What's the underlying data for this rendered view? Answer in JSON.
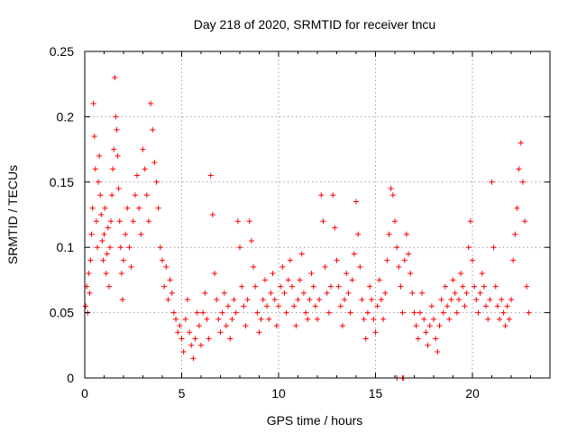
{
  "chart_data": {
    "type": "scatter",
    "title": "Day 218 of 2020, SRMTID for receiver tncu",
    "xlabel": "GPS time / hours",
    "ylabel": "SRMTID / TECUs",
    "xlim": [
      0,
      24
    ],
    "ylim": [
      0,
      0.25
    ],
    "xticks": [
      "0",
      "5",
      "10",
      "15",
      "20"
    ],
    "xtick_values": [
      0,
      5,
      10,
      15,
      20
    ],
    "yticks": [
      "0",
      "0.05",
      "0.1",
      "0.15",
      "0.2",
      "0.25"
    ],
    "ytick_values": [
      0,
      0.05,
      0.1,
      0.15,
      0.2,
      0.25
    ],
    "grid": true,
    "marker": "plus",
    "color": "#ff0000",
    "series": [
      {
        "values": [
          [
            0.05,
            0.055
          ],
          [
            0.1,
            0.07
          ],
          [
            0.15,
            0.05
          ],
          [
            0.2,
            0.08
          ],
          [
            0.25,
            0.065
          ],
          [
            0.3,
            0.09
          ],
          [
            0.35,
            0.11
          ],
          [
            0.4,
            0.13
          ],
          [
            0.45,
            0.21
          ],
          [
            0.5,
            0.185
          ],
          [
            0.55,
            0.16
          ],
          [
            0.6,
            0.12
          ],
          [
            0.65,
            0.1
          ],
          [
            0.7,
            0.15
          ],
          [
            0.75,
            0.17
          ],
          [
            0.8,
            0.14
          ],
          [
            0.85,
            0.125
          ],
          [
            0.9,
            0.105
          ],
          [
            0.95,
            0.09
          ],
          [
            1.0,
            0.11
          ],
          [
            1.05,
            0.13
          ],
          [
            1.1,
            0.08
          ],
          [
            1.15,
            0.095
          ],
          [
            1.2,
            0.115
          ],
          [
            1.25,
            0.07
          ],
          [
            1.3,
            0.1
          ],
          [
            1.35,
            0.12
          ],
          [
            1.4,
            0.14
          ],
          [
            1.45,
            0.16
          ],
          [
            1.5,
            0.175
          ],
          [
            1.55,
            0.23
          ],
          [
            1.6,
            0.2
          ],
          [
            1.65,
            0.19
          ],
          [
            1.7,
            0.17
          ],
          [
            1.75,
            0.145
          ],
          [
            1.8,
            0.12
          ],
          [
            1.85,
            0.1
          ],
          [
            1.9,
            0.08
          ],
          [
            1.95,
            0.06
          ],
          [
            2.0,
            0.09
          ],
          [
            2.1,
            0.11
          ],
          [
            2.2,
            0.13
          ],
          [
            2.3,
            0.1
          ],
          [
            2.4,
            0.085
          ],
          [
            2.5,
            0.12
          ],
          [
            2.6,
            0.14
          ],
          [
            2.7,
            0.155
          ],
          [
            2.8,
            0.13
          ],
          [
            2.9,
            0.11
          ],
          [
            3.0,
            0.175
          ],
          [
            3.1,
            0.16
          ],
          [
            3.2,
            0.14
          ],
          [
            3.3,
            0.12
          ],
          [
            3.4,
            0.21
          ],
          [
            3.5,
            0.19
          ],
          [
            3.6,
            0.165
          ],
          [
            3.7,
            0.15
          ],
          [
            3.8,
            0.13
          ],
          [
            3.9,
            0.1
          ],
          [
            4.0,
            0.09
          ],
          [
            4.1,
            0.07
          ],
          [
            4.2,
            0.085
          ],
          [
            4.3,
            0.06
          ],
          [
            4.4,
            0.075
          ],
          [
            4.5,
            0.065
          ],
          [
            4.6,
            0.05
          ],
          [
            4.7,
            0.045
          ],
          [
            4.8,
            0.035
          ],
          [
            4.9,
            0.04
          ],
          [
            5.0,
            0.03
          ],
          [
            5.1,
            0.02
          ],
          [
            5.2,
            0.045
          ],
          [
            5.3,
            0.06
          ],
          [
            5.4,
            0.035
          ],
          [
            5.5,
            0.025
          ],
          [
            5.6,
            0.015
          ],
          [
            5.7,
            0.03
          ],
          [
            5.8,
            0.05
          ],
          [
            5.9,
            0.04
          ],
          [
            6.0,
            0.025
          ],
          [
            6.1,
            0.05
          ],
          [
            6.2,
            0.065
          ],
          [
            6.3,
            0.045
          ],
          [
            6.4,
            0.03
          ],
          [
            6.5,
            0.155
          ],
          [
            6.6,
            0.125
          ],
          [
            6.7,
            0.08
          ],
          [
            6.8,
            0.06
          ],
          [
            6.9,
            0.045
          ],
          [
            7.0,
            0.035
          ],
          [
            7.1,
            0.05
          ],
          [
            7.2,
            0.065
          ],
          [
            7.3,
            0.04
          ],
          [
            7.4,
            0.055
          ],
          [
            7.5,
            0.03
          ],
          [
            7.6,
            0.045
          ],
          [
            7.7,
            0.06
          ],
          [
            7.8,
            0.05
          ],
          [
            7.9,
            0.12
          ],
          [
            8.0,
            0.1
          ],
          [
            8.1,
            0.07
          ],
          [
            8.2,
            0.055
          ],
          [
            8.3,
            0.04
          ],
          [
            8.4,
            0.06
          ],
          [
            8.5,
            0.12
          ],
          [
            8.6,
            0.105
          ],
          [
            8.7,
            0.085
          ],
          [
            8.8,
            0.07
          ],
          [
            8.9,
            0.05
          ],
          [
            9.0,
            0.035
          ],
          [
            9.1,
            0.045
          ],
          [
            9.2,
            0.06
          ],
          [
            9.3,
            0.075
          ],
          [
            9.4,
            0.055
          ],
          [
            9.5,
            0.045
          ],
          [
            9.6,
            0.065
          ],
          [
            9.7,
            0.08
          ],
          [
            9.8,
            0.06
          ],
          [
            9.9,
            0.04
          ],
          [
            10.0,
            0.055
          ],
          [
            10.1,
            0.07
          ],
          [
            10.2,
            0.085
          ],
          [
            10.3,
            0.065
          ],
          [
            10.4,
            0.05
          ],
          [
            10.5,
            0.075
          ],
          [
            10.6,
            0.09
          ],
          [
            10.7,
            0.07
          ],
          [
            10.8,
            0.055
          ],
          [
            10.9,
            0.04
          ],
          [
            11.0,
            0.06
          ],
          [
            11.1,
            0.075
          ],
          [
            11.2,
            0.095
          ],
          [
            11.3,
            0.065
          ],
          [
            11.4,
            0.05
          ],
          [
            11.5,
            0.045
          ],
          [
            11.6,
            0.06
          ],
          [
            11.7,
            0.08
          ],
          [
            11.8,
            0.07
          ],
          [
            11.9,
            0.055
          ],
          [
            12.0,
            0.045
          ],
          [
            12.1,
            0.06
          ],
          [
            12.2,
            0.14
          ],
          [
            12.3,
            0.12
          ],
          [
            12.4,
            0.085
          ],
          [
            12.5,
            0.065
          ],
          [
            12.6,
            0.05
          ],
          [
            12.7,
            0.07
          ],
          [
            12.8,
            0.14
          ],
          [
            12.9,
            0.115
          ],
          [
            13.0,
            0.09
          ],
          [
            13.1,
            0.07
          ],
          [
            13.2,
            0.055
          ],
          [
            13.3,
            0.04
          ],
          [
            13.4,
            0.06
          ],
          [
            13.5,
            0.08
          ],
          [
            13.6,
            0.065
          ],
          [
            13.7,
            0.05
          ],
          [
            13.8,
            0.075
          ],
          [
            13.9,
            0.095
          ],
          [
            14.0,
            0.135
          ],
          [
            14.1,
            0.11
          ],
          [
            14.2,
            0.085
          ],
          [
            14.3,
            0.06
          ],
          [
            14.4,
            0.045
          ],
          [
            14.5,
            0.03
          ],
          [
            14.6,
            0.05
          ],
          [
            14.7,
            0.07
          ],
          [
            14.8,
            0.06
          ],
          [
            14.9,
            0.045
          ],
          [
            15.0,
            0.035
          ],
          [
            15.1,
            0.055
          ],
          [
            15.2,
            0.075
          ],
          [
            15.3,
            0.06
          ],
          [
            15.4,
            0.045
          ],
          [
            15.5,
            0.065
          ],
          [
            15.6,
            0.09
          ],
          [
            15.7,
            0.11
          ],
          [
            15.8,
            0.145
          ],
          [
            15.9,
            0.14
          ],
          [
            16.0,
            0.12
          ],
          [
            16.1,
            0.1
          ],
          [
            16.2,
            0.085
          ],
          [
            16.3,
            0.07
          ],
          [
            16.4,
            0.05
          ],
          [
            16.5,
            0.09
          ],
          [
            16.6,
            0.11
          ],
          [
            16.7,
            0.095
          ],
          [
            16.8,
            0.08
          ],
          [
            16.9,
            0.065
          ],
          [
            17.0,
            0.05
          ],
          [
            17.1,
            0.04
          ],
          [
            17.2,
            0.03
          ],
          [
            17.3,
            0.05
          ],
          [
            17.4,
            0.065
          ],
          [
            17.5,
            0.045
          ],
          [
            17.6,
            0.035
          ],
          [
            17.7,
            0.025
          ],
          [
            17.8,
            0.04
          ],
          [
            17.9,
            0.055
          ],
          [
            18.0,
            0.045
          ],
          [
            18.1,
            0.03
          ],
          [
            18.2,
            0.02
          ],
          [
            18.3,
            0.04
          ],
          [
            18.4,
            0.06
          ],
          [
            18.5,
            0.05
          ],
          [
            18.6,
            0.07
          ],
          [
            18.7,
            0.055
          ],
          [
            18.8,
            0.045
          ],
          [
            18.9,
            0.06
          ],
          [
            19.0,
            0.075
          ],
          [
            19.1,
            0.065
          ],
          [
            19.2,
            0.05
          ],
          [
            19.3,
            0.06
          ],
          [
            19.4,
            0.08
          ],
          [
            19.5,
            0.07
          ],
          [
            19.6,
            0.055
          ],
          [
            19.7,
            0.065
          ],
          [
            19.8,
            0.1
          ],
          [
            19.9,
            0.12
          ],
          [
            20.0,
            0.09
          ],
          [
            20.1,
            0.07
          ],
          [
            20.2,
            0.06
          ],
          [
            20.3,
            0.05
          ],
          [
            20.4,
            0.065
          ],
          [
            20.5,
            0.08
          ],
          [
            20.6,
            0.07
          ],
          [
            20.7,
            0.055
          ],
          [
            20.8,
            0.045
          ],
          [
            20.9,
            0.06
          ],
          [
            21.0,
            0.15
          ],
          [
            21.1,
            0.1
          ],
          [
            21.2,
            0.07
          ],
          [
            21.3,
            0.055
          ],
          [
            21.4,
            0.045
          ],
          [
            21.5,
            0.06
          ],
          [
            21.6,
            0.05
          ],
          [
            21.7,
            0.04
          ],
          [
            21.8,
            0.055
          ],
          [
            21.9,
            0.045
          ],
          [
            22.0,
            0.06
          ],
          [
            22.1,
            0.09
          ],
          [
            22.2,
            0.11
          ],
          [
            22.3,
            0.13
          ],
          [
            22.4,
            0.16
          ],
          [
            22.5,
            0.18
          ],
          [
            22.6,
            0.15
          ],
          [
            22.7,
            0.12
          ],
          [
            22.8,
            0.07
          ],
          [
            22.9,
            0.05
          ],
          [
            16.1,
            0.0
          ],
          [
            16.4,
            0.0
          ],
          [
            16.45,
            0.0
          ]
        ]
      }
    ]
  }
}
